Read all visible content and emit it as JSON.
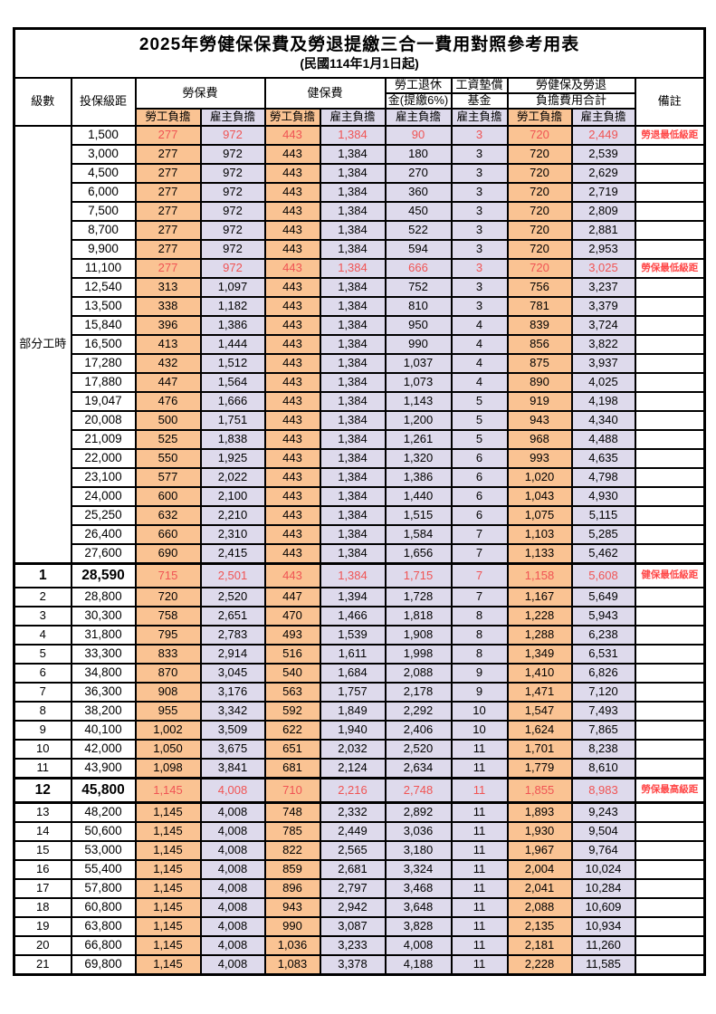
{
  "title": "2025年勞健保保費及勞退提繳三合一費用對照參考用表",
  "subtitle": "(民國114年1月1日起)",
  "header": {
    "level": "級數",
    "bracket": "投保級距",
    "labor_insurance": "勞保費",
    "health_insurance": "健保費",
    "pension_line1": "勞工退休",
    "pension_line2": "金(提繳6%)",
    "wage_fund_line1": "工資墊償",
    "wage_fund_line2": "基金",
    "total_line1": "勞健保及勞退",
    "total_line2": "負擔費用合計",
    "remark": "備註",
    "worker_burden": "勞工負擔",
    "employer_burden": "雇主負擔"
  },
  "part_time_label": "部分工時",
  "part_time_rowspan": 23,
  "colors": {
    "worker_bg": "#FAC393",
    "employer_bg": "#DEDAEC",
    "red_value": "#F05454",
    "remark_red": "#FF4747",
    "border": "#000000"
  },
  "value_columns": [
    "labor_worker",
    "labor_employer",
    "health_worker",
    "health_employer",
    "pension_employer",
    "fund_employer",
    "total_worker",
    "total_employer"
  ],
  "rows": [
    {
      "level": "",
      "bracket": "1,500",
      "values": [
        "277",
        "972",
        "443",
        "1,384",
        "90",
        "3",
        "720",
        "2,449"
      ],
      "remark": "勞退最低級距",
      "red": true
    },
    {
      "level": "",
      "bracket": "3,000",
      "values": [
        "277",
        "972",
        "443",
        "1,384",
        "180",
        "3",
        "720",
        "2,539"
      ],
      "remark": ""
    },
    {
      "level": "",
      "bracket": "4,500",
      "values": [
        "277",
        "972",
        "443",
        "1,384",
        "270",
        "3",
        "720",
        "2,629"
      ],
      "remark": ""
    },
    {
      "level": "",
      "bracket": "6,000",
      "values": [
        "277",
        "972",
        "443",
        "1,384",
        "360",
        "3",
        "720",
        "2,719"
      ],
      "remark": ""
    },
    {
      "level": "",
      "bracket": "7,500",
      "values": [
        "277",
        "972",
        "443",
        "1,384",
        "450",
        "3",
        "720",
        "2,809"
      ],
      "remark": ""
    },
    {
      "level": "",
      "bracket": "8,700",
      "values": [
        "277",
        "972",
        "443",
        "1,384",
        "522",
        "3",
        "720",
        "2,881"
      ],
      "remark": ""
    },
    {
      "level": "",
      "bracket": "9,900",
      "values": [
        "277",
        "972",
        "443",
        "1,384",
        "594",
        "3",
        "720",
        "2,953"
      ],
      "remark": ""
    },
    {
      "level": "",
      "bracket": "11,100",
      "values": [
        "277",
        "972",
        "443",
        "1,384",
        "666",
        "3",
        "720",
        "3,025"
      ],
      "remark": "勞保最低級距",
      "red": true
    },
    {
      "level": "",
      "bracket": "12,540",
      "values": [
        "313",
        "1,097",
        "443",
        "1,384",
        "752",
        "3",
        "756",
        "3,237"
      ],
      "remark": ""
    },
    {
      "level": "",
      "bracket": "13,500",
      "values": [
        "338",
        "1,182",
        "443",
        "1,384",
        "810",
        "3",
        "781",
        "3,379"
      ],
      "remark": ""
    },
    {
      "level": "",
      "bracket": "15,840",
      "values": [
        "396",
        "1,386",
        "443",
        "1,384",
        "950",
        "4",
        "839",
        "3,724"
      ],
      "remark": ""
    },
    {
      "level": "",
      "bracket": "16,500",
      "values": [
        "413",
        "1,444",
        "443",
        "1,384",
        "990",
        "4",
        "856",
        "3,822"
      ],
      "remark": ""
    },
    {
      "level": "",
      "bracket": "17,280",
      "values": [
        "432",
        "1,512",
        "443",
        "1,384",
        "1,037",
        "4",
        "875",
        "3,937"
      ],
      "remark": ""
    },
    {
      "level": "",
      "bracket": "17,880",
      "values": [
        "447",
        "1,564",
        "443",
        "1,384",
        "1,073",
        "4",
        "890",
        "4,025"
      ],
      "remark": ""
    },
    {
      "level": "",
      "bracket": "19,047",
      "values": [
        "476",
        "1,666",
        "443",
        "1,384",
        "1,143",
        "5",
        "919",
        "4,198"
      ],
      "remark": ""
    },
    {
      "level": "",
      "bracket": "20,008",
      "values": [
        "500",
        "1,751",
        "443",
        "1,384",
        "1,200",
        "5",
        "943",
        "4,340"
      ],
      "remark": ""
    },
    {
      "level": "",
      "bracket": "21,009",
      "values": [
        "525",
        "1,838",
        "443",
        "1,384",
        "1,261",
        "5",
        "968",
        "4,488"
      ],
      "remark": ""
    },
    {
      "level": "",
      "bracket": "22,000",
      "values": [
        "550",
        "1,925",
        "443",
        "1,384",
        "1,320",
        "6",
        "993",
        "4,635"
      ],
      "remark": ""
    },
    {
      "level": "",
      "bracket": "23,100",
      "values": [
        "577",
        "2,022",
        "443",
        "1,384",
        "1,386",
        "6",
        "1,020",
        "4,798"
      ],
      "remark": ""
    },
    {
      "level": "",
      "bracket": "24,000",
      "values": [
        "600",
        "2,100",
        "443",
        "1,384",
        "1,440",
        "6",
        "1,043",
        "4,930"
      ],
      "remark": ""
    },
    {
      "level": "",
      "bracket": "25,250",
      "values": [
        "632",
        "2,210",
        "443",
        "1,384",
        "1,515",
        "6",
        "1,075",
        "5,115"
      ],
      "remark": ""
    },
    {
      "level": "",
      "bracket": "26,400",
      "values": [
        "660",
        "2,310",
        "443",
        "1,384",
        "1,584",
        "7",
        "1,103",
        "5,285"
      ],
      "remark": ""
    },
    {
      "level": "",
      "bracket": "27,600",
      "values": [
        "690",
        "2,415",
        "443",
        "1,384",
        "1,656",
        "7",
        "1,133",
        "5,462"
      ],
      "remark": ""
    },
    {
      "level": "1",
      "bracket": "28,590",
      "values": [
        "715",
        "2,501",
        "443",
        "1,384",
        "1,715",
        "7",
        "1,158",
        "5,608"
      ],
      "remark": "健保最低級距",
      "red": true,
      "bold": true,
      "thick_top": true
    },
    {
      "level": "2",
      "bracket": "28,800",
      "values": [
        "720",
        "2,520",
        "447",
        "1,394",
        "1,728",
        "7",
        "1,167",
        "5,649"
      ],
      "remark": ""
    },
    {
      "level": "3",
      "bracket": "30,300",
      "values": [
        "758",
        "2,651",
        "470",
        "1,466",
        "1,818",
        "8",
        "1,228",
        "5,943"
      ],
      "remark": ""
    },
    {
      "level": "4",
      "bracket": "31,800",
      "values": [
        "795",
        "2,783",
        "493",
        "1,539",
        "1,908",
        "8",
        "1,288",
        "6,238"
      ],
      "remark": ""
    },
    {
      "level": "5",
      "bracket": "33,300",
      "values": [
        "833",
        "2,914",
        "516",
        "1,611",
        "1,998",
        "8",
        "1,349",
        "6,531"
      ],
      "remark": ""
    },
    {
      "level": "6",
      "bracket": "34,800",
      "values": [
        "870",
        "3,045",
        "540",
        "1,684",
        "2,088",
        "9",
        "1,410",
        "6,826"
      ],
      "remark": ""
    },
    {
      "level": "7",
      "bracket": "36,300",
      "values": [
        "908",
        "3,176",
        "563",
        "1,757",
        "2,178",
        "9",
        "1,471",
        "7,120"
      ],
      "remark": ""
    },
    {
      "level": "8",
      "bracket": "38,200",
      "values": [
        "955",
        "3,342",
        "592",
        "1,849",
        "2,292",
        "10",
        "1,547",
        "7,493"
      ],
      "remark": ""
    },
    {
      "level": "9",
      "bracket": "40,100",
      "values": [
        "1,002",
        "3,509",
        "622",
        "1,940",
        "2,406",
        "10",
        "1,624",
        "7,865"
      ],
      "remark": ""
    },
    {
      "level": "10",
      "bracket": "42,000",
      "values": [
        "1,050",
        "3,675",
        "651",
        "2,032",
        "2,520",
        "11",
        "1,701",
        "8,238"
      ],
      "remark": ""
    },
    {
      "level": "11",
      "bracket": "43,900",
      "values": [
        "1,098",
        "3,841",
        "681",
        "2,124",
        "2,634",
        "11",
        "1,779",
        "8,610"
      ],
      "remark": ""
    },
    {
      "level": "12",
      "bracket": "45,800",
      "values": [
        "1,145",
        "4,008",
        "710",
        "2,216",
        "2,748",
        "11",
        "1,855",
        "8,983"
      ],
      "remark": "勞保最高級距",
      "red": true,
      "bold": true,
      "thick_top": true,
      "thick_bottom": true
    },
    {
      "level": "13",
      "bracket": "48,200",
      "values": [
        "1,145",
        "4,008",
        "748",
        "2,332",
        "2,892",
        "11",
        "1,893",
        "9,243"
      ],
      "remark": ""
    },
    {
      "level": "14",
      "bracket": "50,600",
      "values": [
        "1,145",
        "4,008",
        "785",
        "2,449",
        "3,036",
        "11",
        "1,930",
        "9,504"
      ],
      "remark": ""
    },
    {
      "level": "15",
      "bracket": "53,000",
      "values": [
        "1,145",
        "4,008",
        "822",
        "2,565",
        "3,180",
        "11",
        "1,967",
        "9,764"
      ],
      "remark": ""
    },
    {
      "level": "16",
      "bracket": "55,400",
      "values": [
        "1,145",
        "4,008",
        "859",
        "2,681",
        "3,324",
        "11",
        "2,004",
        "10,024"
      ],
      "remark": ""
    },
    {
      "level": "17",
      "bracket": "57,800",
      "values": [
        "1,145",
        "4,008",
        "896",
        "2,797",
        "3,468",
        "11",
        "2,041",
        "10,284"
      ],
      "remark": ""
    },
    {
      "level": "18",
      "bracket": "60,800",
      "values": [
        "1,145",
        "4,008",
        "943",
        "2,942",
        "3,648",
        "11",
        "2,088",
        "10,609"
      ],
      "remark": ""
    },
    {
      "level": "19",
      "bracket": "63,800",
      "values": [
        "1,145",
        "4,008",
        "990",
        "3,087",
        "3,828",
        "11",
        "2,135",
        "10,934"
      ],
      "remark": ""
    },
    {
      "level": "20",
      "bracket": "66,800",
      "values": [
        "1,145",
        "4,008",
        "1,036",
        "3,233",
        "4,008",
        "11",
        "2,181",
        "11,260"
      ],
      "remark": ""
    },
    {
      "level": "21",
      "bracket": "69,800",
      "values": [
        "1,145",
        "4,008",
        "1,083",
        "3,378",
        "4,188",
        "11",
        "2,228",
        "11,585"
      ],
      "remark": ""
    }
  ]
}
